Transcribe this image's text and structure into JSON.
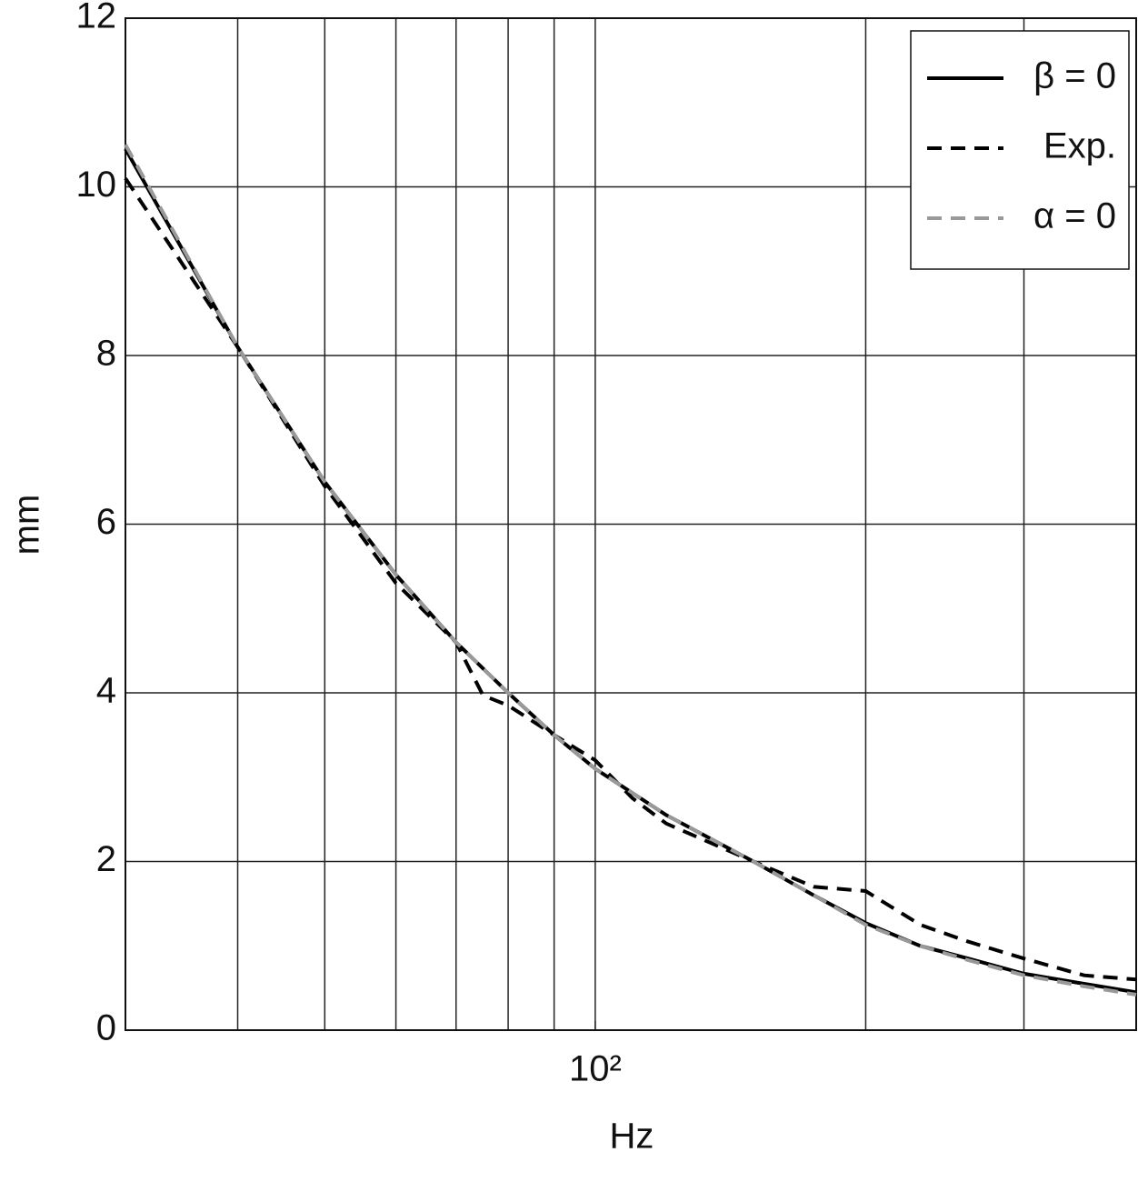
{
  "chart_data": {
    "type": "line",
    "xlabel": "Hz",
    "ylabel": "mm",
    "xscale": "log",
    "xlim": [
      30,
      400
    ],
    "ylim": [
      0,
      12
    ],
    "xticks": [
      {
        "value": 100,
        "label": "10²"
      }
    ],
    "xgrid_lines": [
      40,
      50,
      60,
      70,
      80,
      90,
      100,
      200,
      300
    ],
    "yticks": [
      0,
      2,
      4,
      6,
      8,
      10,
      12
    ],
    "grid": true,
    "legend": "upper right",
    "series": [
      {
        "name": "β = 0",
        "color": "#000000",
        "dash": "solid",
        "x": [
          30,
          40,
          50,
          60,
          70,
          80,
          90,
          100,
          120,
          150,
          175,
          200,
          230,
          260,
          300,
          350,
          400
        ],
        "values": [
          10.45,
          8.1,
          6.5,
          5.4,
          4.6,
          4.0,
          3.5,
          3.1,
          2.55,
          2.0,
          1.6,
          1.27,
          1.0,
          0.85,
          0.67,
          0.55,
          0.45
        ]
      },
      {
        "name": "Exp.",
        "color": "#000000",
        "dash": "dashed",
        "x": [
          30,
          40,
          50,
          60,
          70,
          75,
          80,
          90,
          100,
          110,
          120,
          150,
          175,
          200,
          230,
          260,
          300,
          350,
          400
        ],
        "values": [
          10.1,
          8.1,
          6.45,
          5.3,
          4.6,
          3.97,
          3.85,
          3.5,
          3.2,
          2.75,
          2.45,
          2.0,
          1.7,
          1.65,
          1.25,
          1.05,
          0.85,
          0.65,
          0.6
        ]
      },
      {
        "name": "α = 0",
        "color": "#999999",
        "dash": "dashed",
        "x": [
          30,
          40,
          50,
          60,
          70,
          80,
          90,
          100,
          120,
          150,
          175,
          200,
          230,
          260,
          300,
          350,
          400
        ],
        "values": [
          10.5,
          8.1,
          6.5,
          5.4,
          4.6,
          4.0,
          3.5,
          3.1,
          2.55,
          2.0,
          1.6,
          1.25,
          1.0,
          0.83,
          0.65,
          0.52,
          0.42
        ]
      }
    ]
  }
}
